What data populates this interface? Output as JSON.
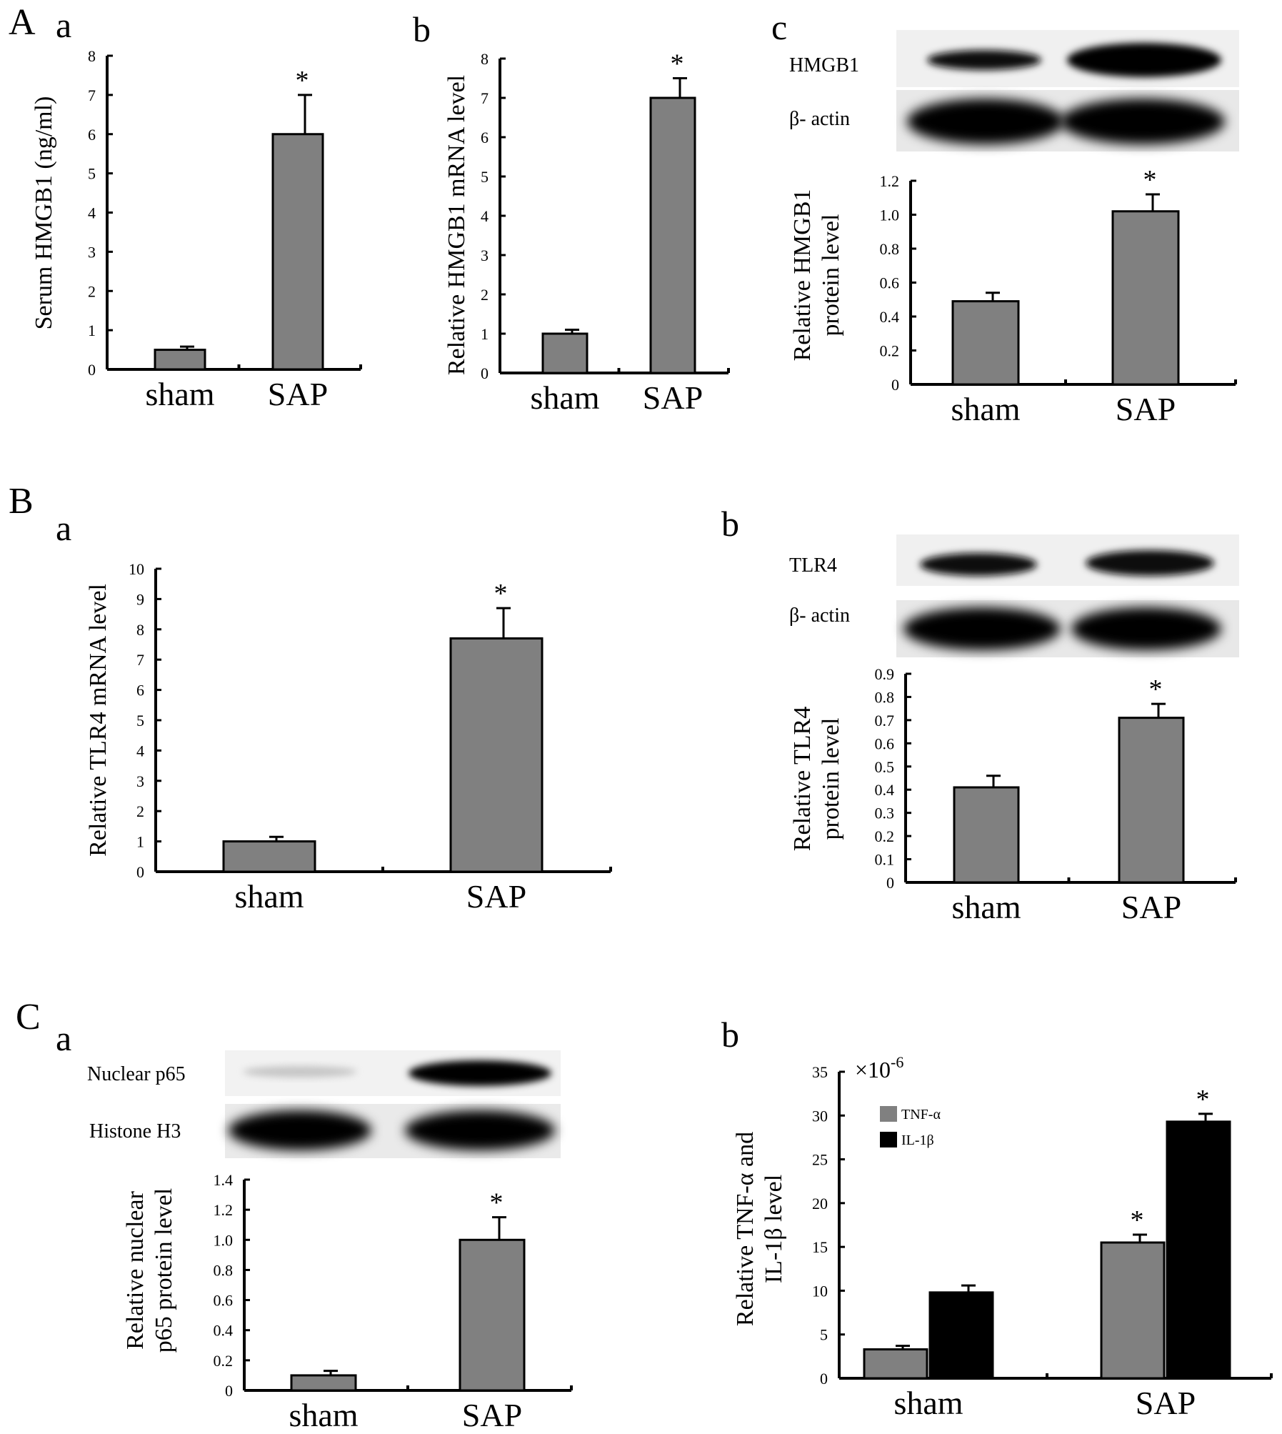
{
  "colors": {
    "bar_gray": "#808080",
    "bar_black": "#000000",
    "axis": "#000000"
  },
  "panels": {
    "A": "A",
    "B": "B",
    "C": "C"
  },
  "sublabels": {
    "Aa": "a",
    "Ab": "b",
    "Ac": "c",
    "Ba": "a",
    "Bb": "b",
    "Ca": "a",
    "Cb": "b"
  },
  "blots": {
    "Ac": {
      "top": "HMGB1",
      "bottom": "β- actin"
    },
    "Bb": {
      "top": "TLR4",
      "bottom": "β- actin"
    },
    "Ca": {
      "top": "Nuclear p65",
      "bottom": "Histone H3"
    }
  },
  "chart_data": [
    {
      "id": "Aa",
      "type": "bar",
      "categories": [
        "sham",
        "SAP"
      ],
      "values": [
        0.5,
        6.0
      ],
      "errors": [
        0.08,
        1.0
      ],
      "significance": [
        "",
        "*"
      ],
      "ylabel": "Serum HMGB1 (ng/ml)",
      "xlabel": "",
      "ylim": [
        0,
        8
      ],
      "yticks": [
        "0",
        "1",
        "2",
        "3",
        "4",
        "5",
        "6",
        "7",
        "8"
      ]
    },
    {
      "id": "Ab",
      "type": "bar",
      "categories": [
        "sham",
        "SAP"
      ],
      "values": [
        1.0,
        7.0
      ],
      "errors": [
        0.1,
        0.5
      ],
      "significance": [
        "",
        "*"
      ],
      "ylabel": "Relative HMGB1 mRNA level",
      "xlabel": "",
      "ylim": [
        0,
        8
      ],
      "yticks": [
        "0",
        "1",
        "2",
        "3",
        "4",
        "5",
        "6",
        "7",
        "8"
      ]
    },
    {
      "id": "Ac",
      "type": "bar",
      "categories": [
        "sham",
        "SAP"
      ],
      "values": [
        0.49,
        1.02
      ],
      "errors": [
        0.05,
        0.1
      ],
      "significance": [
        "",
        "*"
      ],
      "ylabel": [
        "Relative HMGB1",
        "protein level"
      ],
      "xlabel": "",
      "ylim": [
        0,
        1.2
      ],
      "yticks": [
        "0",
        "0.2",
        "0.4",
        "0.6",
        "0.8",
        "1.0",
        "1.2"
      ]
    },
    {
      "id": "Ba",
      "type": "bar",
      "categories": [
        "sham",
        "SAP"
      ],
      "values": [
        1.0,
        7.7
      ],
      "errors": [
        0.15,
        1.0
      ],
      "significance": [
        "",
        "*"
      ],
      "ylabel": "Relative TLR4 mRNA level",
      "xlabel": "",
      "ylim": [
        0,
        10
      ],
      "yticks": [
        "0",
        "1",
        "2",
        "3",
        "4",
        "5",
        "6",
        "7",
        "8",
        "9",
        "10"
      ]
    },
    {
      "id": "Bb",
      "type": "bar",
      "categories": [
        "sham",
        "SAP"
      ],
      "values": [
        0.41,
        0.71
      ],
      "errors": [
        0.05,
        0.06
      ],
      "significance": [
        "",
        "*"
      ],
      "ylabel": [
        "Relative TLR4",
        "protein level"
      ],
      "xlabel": "",
      "ylim": [
        0,
        0.9
      ],
      "yticks": [
        "0",
        "0.1",
        "0.2",
        "0.3",
        "0.4",
        "0.5",
        "0.6",
        "0.7",
        "0.8",
        "0.9"
      ]
    },
    {
      "id": "Ca",
      "type": "bar",
      "categories": [
        "sham",
        "SAP"
      ],
      "values": [
        0.1,
        1.0
      ],
      "errors": [
        0.03,
        0.15
      ],
      "significance": [
        "",
        "*"
      ],
      "ylabel": [
        "Relative nuclear",
        "p65 protein level"
      ],
      "xlabel": "",
      "ylim": [
        0,
        1.4
      ],
      "yticks": [
        "0",
        "0.2",
        "0.4",
        "0.6",
        "0.8",
        "1.0",
        "1.2",
        "1.4"
      ]
    },
    {
      "id": "Cb",
      "type": "bar",
      "categories": [
        "sham",
        "SAP"
      ],
      "series": [
        {
          "name": "TNF-α",
          "values": [
            3.3,
            15.5
          ],
          "errors": [
            0.4,
            0.9
          ],
          "significance": [
            "",
            "*"
          ],
          "color": "#808080"
        },
        {
          "name": "IL-1β",
          "values": [
            9.8,
            29.3
          ],
          "errors": [
            0.8,
            0.9
          ],
          "significance": [
            "",
            "*"
          ],
          "color": "#000000"
        }
      ],
      "ylabel": [
        "Relative TNF-α and",
        "IL-1β level"
      ],
      "xlabel": "",
      "ylim": [
        0,
        35
      ],
      "yticks": [
        "0",
        "5",
        "10",
        "15",
        "20",
        "25",
        "30",
        "35"
      ],
      "multiplier": "×10",
      "multiplier_exp": "-6",
      "legend": "top-left"
    }
  ]
}
